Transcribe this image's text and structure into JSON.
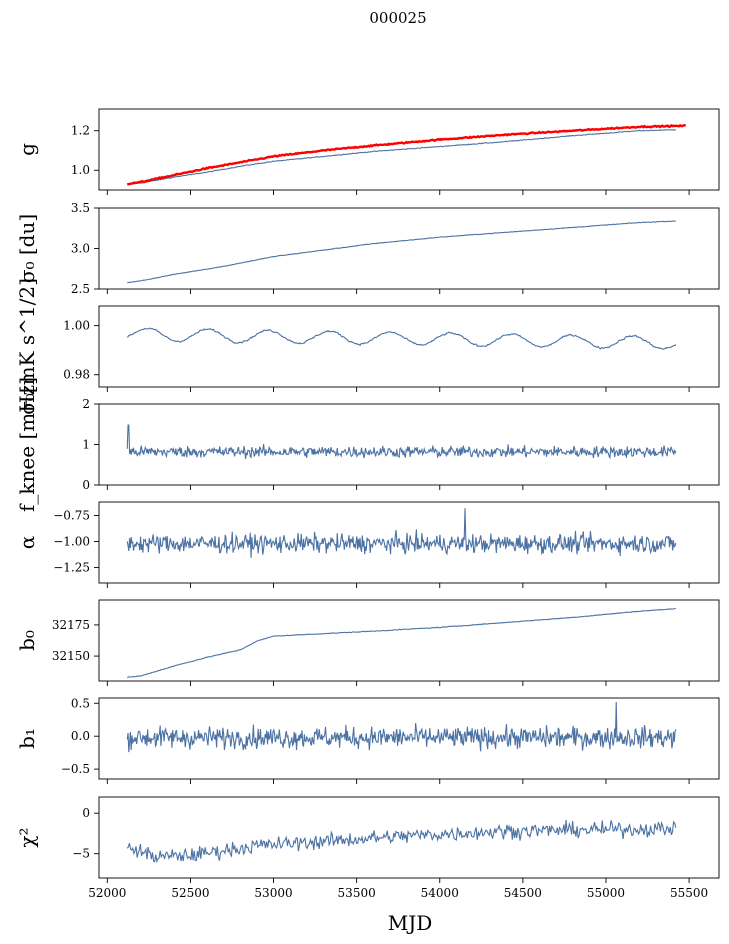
{
  "figure_title": "000025",
  "x_axis": {
    "label": "MJD",
    "min": 51950,
    "max": 55680,
    "ticks": [
      52000,
      52500,
      53000,
      53500,
      54000,
      54500,
      55000,
      55500
    ]
  },
  "chart_data": [
    {
      "type": "line",
      "ylabel": "g",
      "ylim": [
        0.9,
        1.31
      ],
      "yticks": [
        1.0,
        1.2
      ],
      "ytick_labels": [
        "1.0",
        "1.2"
      ],
      "x_range": [
        52120,
        55420
      ],
      "series": [
        {
          "color": "#4c72a4",
          "style": "blue",
          "x": [
            52120,
            52200,
            52400,
            52600,
            52800,
            53000,
            53300,
            53600,
            54000,
            54400,
            54800,
            55200,
            55420
          ],
          "y": [
            0.93,
            0.935,
            0.965,
            0.99,
            1.02,
            1.045,
            1.07,
            1.095,
            1.12,
            1.145,
            1.175,
            1.2,
            1.205
          ],
          "noise": 0.002
        },
        {
          "color": "#ff0000",
          "style": "red",
          "x": [
            52120,
            52200,
            52400,
            52600,
            52800,
            53000,
            53300,
            53600,
            54000,
            54400,
            54800,
            55200,
            55480
          ],
          "y": [
            0.93,
            0.94,
            0.975,
            1.01,
            1.04,
            1.07,
            1.1,
            1.125,
            1.155,
            1.18,
            1.2,
            1.22,
            1.225
          ],
          "noise": 0.003
        }
      ]
    },
    {
      "type": "line",
      "ylabel": "σ₀ [du]",
      "ylim": [
        2.5,
        3.5
      ],
      "yticks": [
        2.5,
        3.0,
        3.5
      ],
      "ytick_labels": [
        "2.5",
        "3.0",
        "3.5"
      ],
      "x_range": [
        52120,
        55420
      ],
      "series": [
        {
          "color": "#4c72a4",
          "x": [
            52120,
            52200,
            52400,
            52700,
            53000,
            53300,
            53600,
            54000,
            54400,
            54800,
            55200,
            55420
          ],
          "y": [
            2.58,
            2.6,
            2.68,
            2.78,
            2.9,
            2.98,
            3.06,
            3.14,
            3.2,
            3.26,
            3.32,
            3.34
          ],
          "noise": 0.004
        }
      ]
    },
    {
      "type": "line",
      "ylabel": "σ₀[mK s^1/2]",
      "ylim": [
        0.975,
        1.008
      ],
      "yticks": [
        0.98,
        1.0
      ],
      "ytick_labels": [
        "0.98",
        "1.00"
      ],
      "x_range": [
        52120,
        55420
      ],
      "series": [
        {
          "color": "#4c72a4",
          "sinusoid": {
            "base": 0.9965,
            "trend": -0.0035,
            "amp": 0.0025,
            "period": 365,
            "phase": 52150
          },
          "noise": 0.0008
        }
      ]
    },
    {
      "type": "line",
      "ylabel": "f_knee [mHz]",
      "ylim": [
        0,
        2
      ],
      "yticks": [
        0,
        1,
        2
      ],
      "ytick_labels": [
        "0",
        "1",
        "2"
      ],
      "x_range": [
        52120,
        55420
      ],
      "series": [
        {
          "color": "#4c72a4",
          "base": 0.82,
          "spike": {
            "x": 52130,
            "y": 1.48
          },
          "noise": 0.14
        }
      ]
    },
    {
      "type": "line",
      "ylabel": "α",
      "ylim": [
        -1.4,
        -0.62
      ],
      "yticks": [
        -1.25,
        -1.0,
        -0.75
      ],
      "ytick_labels": [
        "−1.25",
        "−1.00",
        "−0.75"
      ],
      "x_range": [
        52120,
        55420
      ],
      "series": [
        {
          "color": "#4c72a4",
          "base": -1.02,
          "spike": {
            "x": 54150,
            "y": -0.68
          },
          "noise": 0.09
        }
      ]
    },
    {
      "type": "line",
      "ylabel": "b₀",
      "ylim": [
        32130,
        32195
      ],
      "yticks": [
        32150,
        32175
      ],
      "ytick_labels": [
        "32150",
        "32175"
      ],
      "x_range": [
        52120,
        55420
      ],
      "series": [
        {
          "color": "#4c72a4",
          "x": [
            52120,
            52200,
            52400,
            52600,
            52800,
            52900,
            53000,
            53300,
            53600,
            54000,
            54400,
            54800,
            55200,
            55420
          ],
          "y": [
            32133,
            32134,
            32142,
            32149,
            32155,
            32162,
            32166,
            32168,
            32170,
            32173,
            32177,
            32181,
            32186,
            32188
          ],
          "noise": 0.3
        }
      ]
    },
    {
      "type": "line",
      "ylabel": "b₁",
      "ylim": [
        -0.65,
        0.58
      ],
      "yticks": [
        -0.5,
        0.0,
        0.5
      ],
      "ytick_labels": [
        "−0.5",
        "0.0",
        "0.5"
      ],
      "x_range": [
        52120,
        55420
      ],
      "series": [
        {
          "color": "#4c72a4",
          "base": -0.02,
          "spike": {
            "x": 55060,
            "y": 0.52
          },
          "noise": 0.16
        }
      ]
    },
    {
      "type": "line",
      "ylabel": "χ²",
      "ylim": [
        -8,
        2
      ],
      "yticks": [
        -5,
        0
      ],
      "ytick_labels": [
        "−5",
        "0"
      ],
      "x_range": [
        52120,
        55420
      ],
      "series": [
        {
          "color": "#4c72a4",
          "x": [
            52120,
            52300,
            52500,
            52700,
            52900,
            53200,
            53500,
            53800,
            54100,
            54400,
            54700,
            55000,
            55420
          ],
          "y": [
            -4.2,
            -5.4,
            -5.2,
            -4.6,
            -4.0,
            -3.6,
            -3.2,
            -2.8,
            -2.5,
            -2.2,
            -2.1,
            -2.0,
            -1.9
          ],
          "noise": 0.9
        }
      ]
    }
  ]
}
